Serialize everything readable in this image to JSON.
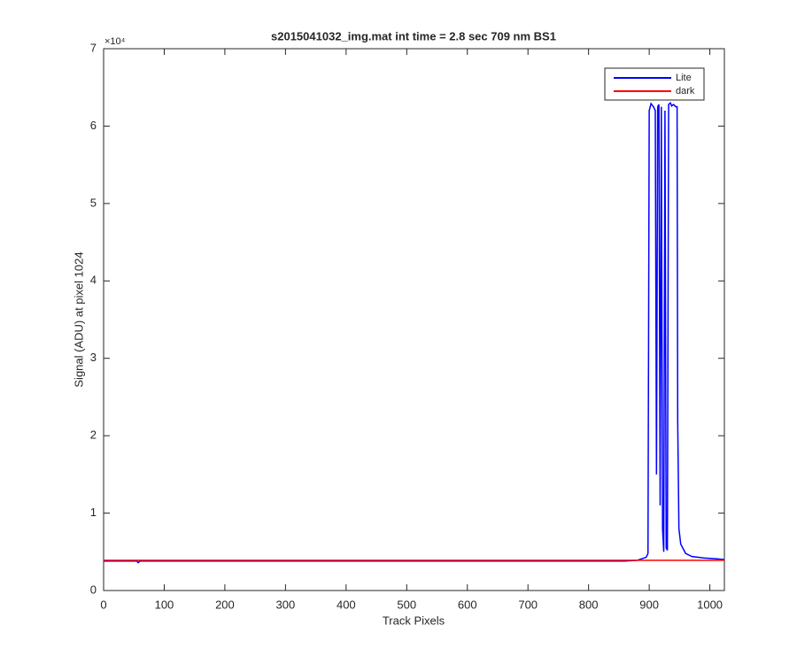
{
  "chart_data": {
    "type": "line",
    "title": "s2015041032_img.mat int time = 2.8 sec  709 nm BS1",
    "xlabel": "Track Pixels",
    "ylabel": "Signal (ADU) at pixel 1024",
    "y_multiplier": "×10⁴",
    "xlim": [
      0,
      1024
    ],
    "xticks": [
      0,
      100,
      200,
      300,
      400,
      500,
      600,
      700,
      800,
      900,
      1000
    ],
    "ylim": [
      0,
      70000
    ],
    "yticks": [
      {
        "value": 0,
        "label": "0"
      },
      {
        "value": 10000,
        "label": "1"
      },
      {
        "value": 20000,
        "label": "2"
      },
      {
        "value": 30000,
        "label": "3"
      },
      {
        "value": 40000,
        "label": "4"
      },
      {
        "value": 50000,
        "label": "5"
      },
      {
        "value": 60000,
        "label": "6"
      },
      {
        "value": 70000,
        "label": "7"
      }
    ],
    "legend": "upper right",
    "series": [
      {
        "name": "Lite",
        "color": "#0000ff",
        "x": [
          0,
          55,
          57,
          60,
          860,
          880,
          895,
          898,
          900,
          903,
          907,
          910,
          912,
          914,
          916,
          918,
          920,
          922,
          924,
          926,
          928,
          930,
          932,
          935,
          937,
          940,
          944,
          946,
          947,
          949,
          952,
          960,
          970,
          990,
          1010,
          1024
        ],
        "values": [
          3800,
          3800,
          3600,
          3800,
          3800,
          3900,
          4300,
          4800,
          62000,
          62900,
          62500,
          62000,
          15000,
          62500,
          62800,
          11000,
          62500,
          8000,
          5000,
          62000,
          5500,
          5200,
          62800,
          63000,
          62600,
          62800,
          62500,
          62500,
          22000,
          8000,
          6000,
          4800,
          4400,
          4200,
          4100,
          4000
        ]
      },
      {
        "name": "dark",
        "color": "#ff0000",
        "x": [
          0,
          1024
        ],
        "values": [
          3900,
          3900
        ]
      }
    ]
  }
}
